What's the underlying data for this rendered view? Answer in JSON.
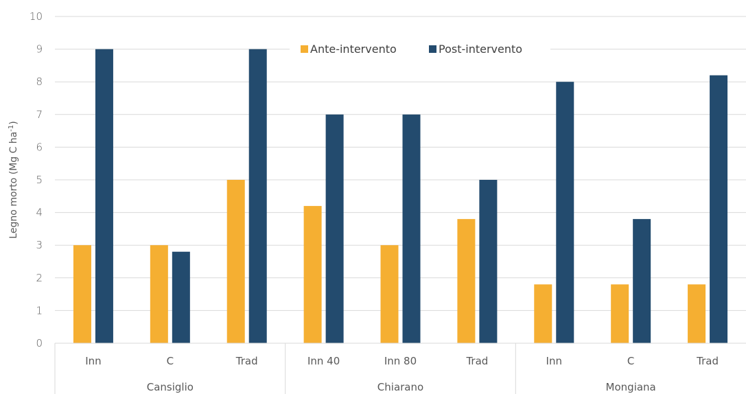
{
  "chart_data": {
    "type": "bar",
    "ylabel_main": "Legno morto (Mg C ha",
    "ylabel_sup": "-1",
    "ylabel_tail": ")",
    "ylim": [
      0,
      10
    ],
    "yticks": [
      0,
      1,
      2,
      3,
      4,
      5,
      6,
      7,
      8,
      9,
      10
    ],
    "grid": true,
    "legend_position": "top-center",
    "groups": [
      {
        "name": "Cansiglio",
        "categories": [
          "Inn",
          "C",
          "Trad"
        ]
      },
      {
        "name": "Chiarano",
        "categories": [
          "Inn 40",
          "Inn 80",
          "Trad"
        ]
      },
      {
        "name": "Mongiana",
        "categories": [
          "Inn",
          "C",
          "Trad"
        ]
      }
    ],
    "series": [
      {
        "name": "Ante-intervento",
        "color": "#F5AF32",
        "values": [
          3.0,
          3.0,
          5.0,
          4.2,
          3.0,
          3.8,
          1.8,
          1.8,
          1.8
        ]
      },
      {
        "name": "Post-intervento",
        "color": "#234B6E",
        "values": [
          9.0,
          2.8,
          9.0,
          7.0,
          7.0,
          5.0,
          8.0,
          3.8,
          8.2
        ]
      }
    ]
  }
}
